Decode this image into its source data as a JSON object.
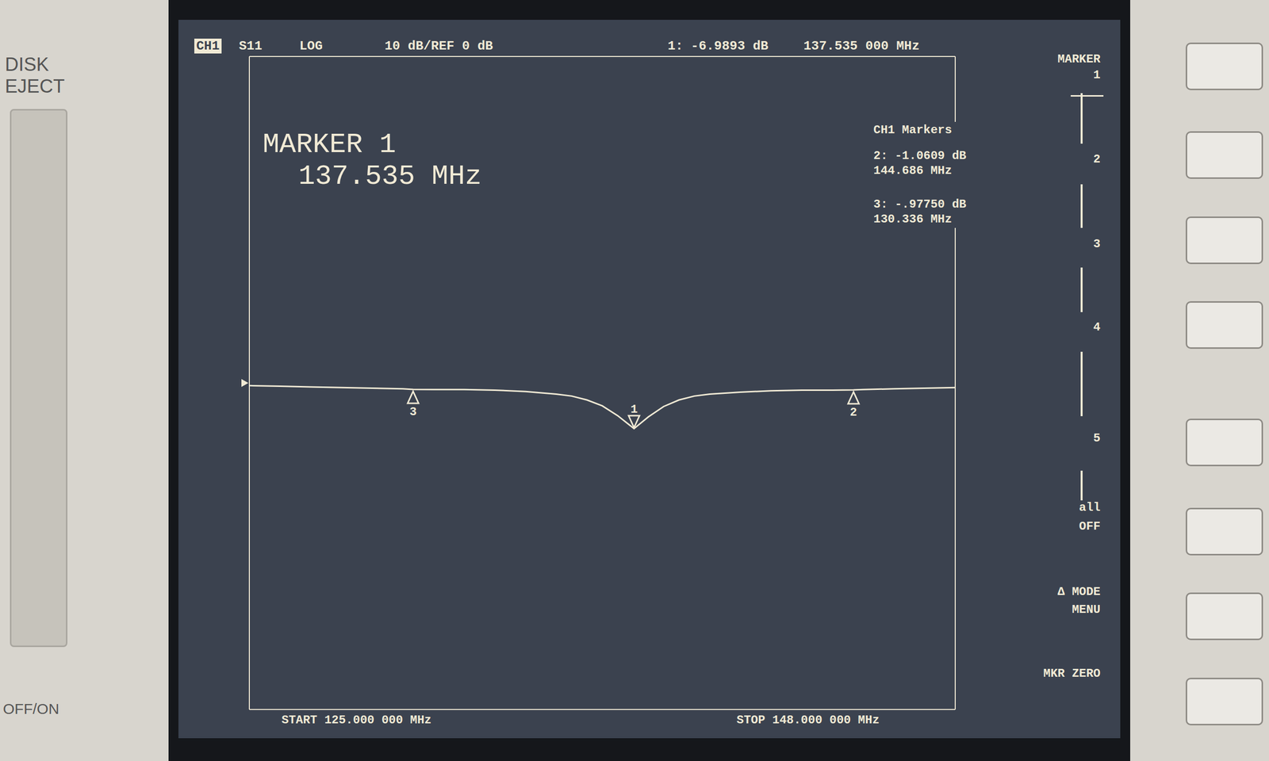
{
  "chart_data": {
    "type": "line",
    "header": [
      "CH1",
      "S11",
      "LOG",
      "10 dB/REF 0 dB",
      "1: -6.9893 dB",
      "137.535 000 MHz"
    ],
    "active_marker": {
      "title": "MARKER 1",
      "frequency": "137.535 MHz"
    },
    "marker_list_title": "CH1 Markers",
    "marker_list": [
      {
        "readout": "2: -1.0609 dB",
        "frequency": "144.686 MHz"
      },
      {
        "readout": "3: -.97750 dB",
        "frequency": "130.336 MHz"
      }
    ],
    "start": "START 125.000 000 MHz",
    "stop": "STOP 148.000 000 MHz",
    "x": [
      125,
      126,
      127,
      128,
      129,
      130,
      130.336,
      131,
      132,
      133,
      134,
      135,
      135.5,
      136,
      136.5,
      137,
      137.535,
      138,
      138.5,
      139,
      139.5,
      140,
      141,
      142,
      143,
      144,
      144.686,
      145,
      146,
      147,
      148
    ],
    "values": [
      -0.4,
      -0.5,
      -0.6,
      -0.7,
      -0.8,
      -0.9,
      -0.9775,
      -1.0,
      -1.0,
      -1.1,
      -1.3,
      -1.7,
      -2.0,
      -2.6,
      -3.5,
      -5.0,
      -6.9893,
      -5.2,
      -3.6,
      -2.6,
      -2.0,
      -1.7,
      -1.4,
      -1.2,
      -1.1,
      -1.1,
      -1.0609,
      -1.0,
      -0.9,
      -0.8,
      -0.7
    ],
    "color": "#f1ead5",
    "markers": [
      {
        "label": "1",
        "x": 137.535,
        "y": -6.9893
      },
      {
        "label": "2",
        "x": 144.686,
        "y": -1.0609
      },
      {
        "label": "3",
        "x": 130.336,
        "y": -0.9775
      }
    ],
    "reference_level": 0,
    "xlim": [
      125,
      148
    ],
    "ylim": [
      -50,
      50
    ],
    "xticks": [
      125,
      127.3,
      129.6,
      131.9,
      134.2,
      136.5,
      138.8,
      141.1,
      143.4,
      145.7,
      148
    ],
    "yticks": [
      -50,
      -40,
      -30,
      -20,
      -10,
      0,
      10,
      20,
      30,
      40,
      50
    ],
    "grid": true,
    "tick_labels": false,
    "softkeys": [
      "MARKER",
      "1",
      "2",
      "3",
      "4",
      "5",
      "all",
      "OFF",
      "Δ MODE",
      "MENU",
      "MKR ZERO"
    ],
    "panel_labels": [
      "DISK",
      "EJECT",
      "OFF/ON"
    ]
  }
}
